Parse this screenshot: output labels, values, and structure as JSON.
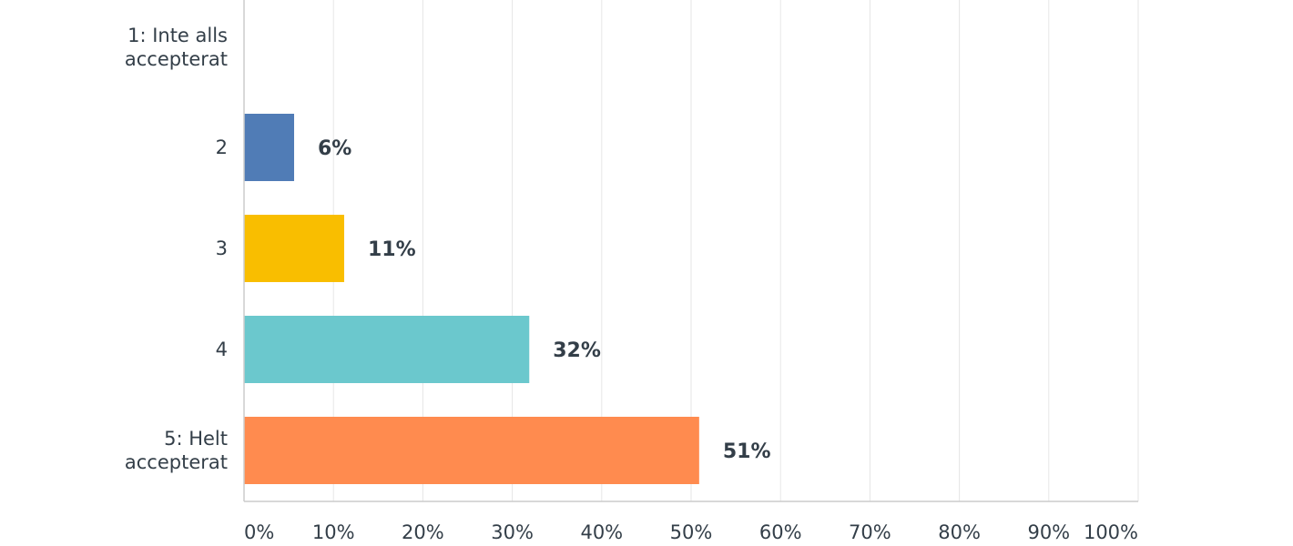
{
  "chart_data": {
    "type": "bar",
    "orientation": "horizontal",
    "categories": [
      [
        "1: Inte alls",
        "accepterat"
      ],
      [
        "2"
      ],
      [
        "3"
      ],
      [
        "4"
      ],
      [
        "5: Helt",
        "accepterat"
      ]
    ],
    "values": [
      0,
      5.6,
      11.2,
      31.9,
      50.9
    ],
    "data_labels": [
      "",
      "6%",
      "11%",
      "32%",
      "51%"
    ],
    "colors": [
      "#507cb6",
      "#507cb6",
      "#f9be00",
      "#6bc8cd",
      "#ff8b4f"
    ],
    "xlim": [
      0,
      100
    ],
    "x_ticks": [
      0,
      10,
      20,
      30,
      40,
      50,
      60,
      70,
      80,
      90,
      100
    ],
    "x_tick_labels": [
      "0%",
      "10%",
      "20%",
      "30%",
      "40%",
      "50%",
      "60%",
      "70%",
      "80%",
      "90%",
      "100%"
    ],
    "grid": true,
    "legend": false
  }
}
